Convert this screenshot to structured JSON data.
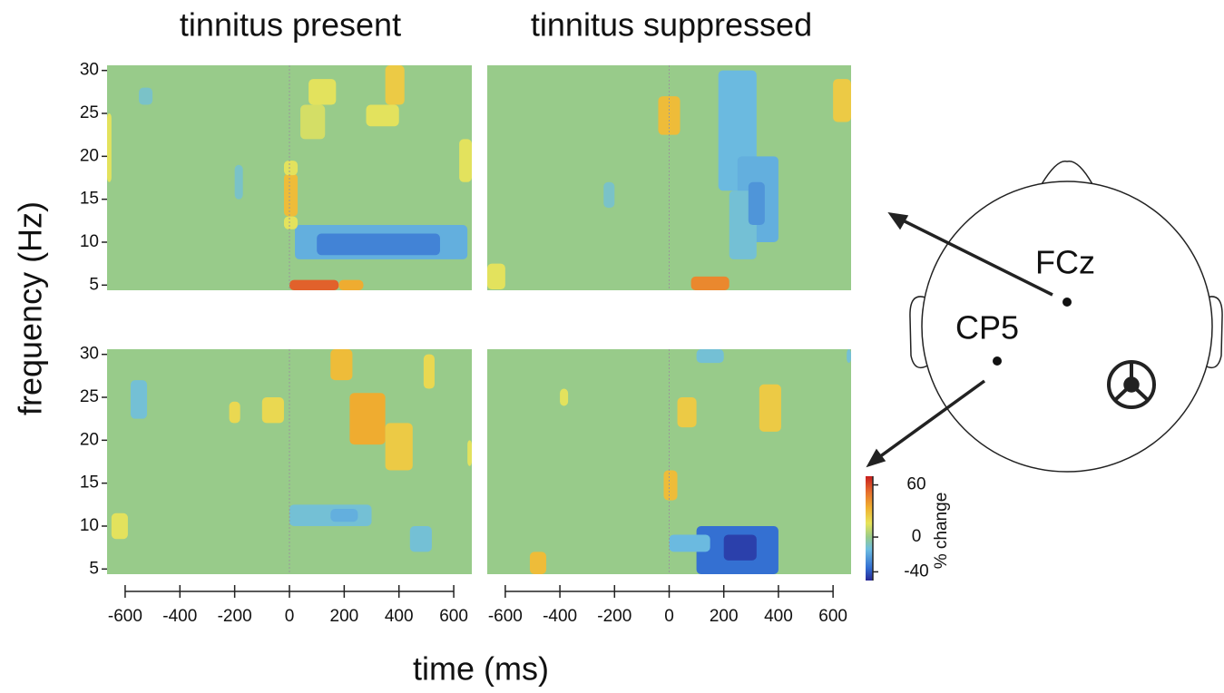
{
  "titles": [
    "tinnitus present",
    "tinnitus suppressed"
  ],
  "x_label": "time (ms)",
  "y_label": "frequency (Hz)",
  "colorbar": {
    "label": "% change",
    "lim": [
      -50,
      70
    ],
    "ticks": [
      60,
      0,
      -40
    ]
  },
  "head": {
    "electrodes": [
      "FCz",
      "CP5"
    ]
  },
  "chart_data": [
    {
      "type": "heatmap",
      "xlim": [
        -666,
        666
      ],
      "ylim": [
        4.4,
        30.6
      ],
      "yticks": [
        5,
        10,
        15,
        20,
        25,
        30
      ],
      "x0": [
        20,
        100,
        0,
        180,
        -20,
        -20,
        -20,
        350,
        280,
        70,
        40,
        -666,
        620,
        -550,
        -200
      ],
      "x1": [
        650,
        550,
        180,
        270,
        30,
        30,
        30,
        420,
        400,
        170,
        130,
        -650,
        666,
        -500,
        -170
      ],
      "y0": [
        8,
        8.5,
        4.4,
        4.4,
        13,
        11.5,
        17.8,
        26,
        23.5,
        26,
        22,
        17,
        17,
        26,
        15
      ],
      "y1": [
        12,
        11,
        5.6,
        5.6,
        18,
        13,
        19.5,
        30.6,
        26,
        29,
        26,
        25,
        22,
        28,
        19
      ],
      "values": [
        -18,
        -30,
        55,
        35,
        30,
        15,
        15,
        25,
        15,
        15,
        12,
        15,
        15,
        -10,
        -10
      ]
    },
    {
      "type": "heatmap",
      "xlim": [
        -666,
        666
      ],
      "ylim": [
        4.4,
        30.6
      ],
      "x0": [
        180,
        250,
        220,
        290,
        -240,
        -40,
        80,
        600,
        -666
      ],
      "x1": [
        320,
        400,
        320,
        350,
        -200,
        40,
        220,
        666,
        -600
      ],
      "y0": [
        16,
        10,
        8,
        12,
        14,
        22.5,
        4.4,
        24,
        4.5
      ],
      "y1": [
        30,
        20,
        16,
        17,
        17,
        27,
        6,
        29,
        7.5
      ],
      "values": [
        -15,
        -18,
        -12,
        -25,
        -10,
        30,
        45,
        25,
        15
      ]
    },
    {
      "type": "heatmap",
      "xlim": [
        -666,
        666
      ],
      "ylim": [
        4.4,
        30.6
      ],
      "yticks": [
        5,
        10,
        15,
        20,
        25,
        30
      ],
      "xticks": [
        -600,
        -400,
        -200,
        0,
        200,
        400,
        600
      ],
      "x0": [
        0,
        150,
        -580,
        440,
        150,
        220,
        350,
        490,
        -100,
        -220,
        -650,
        650
      ],
      "x1": [
        300,
        250,
        -520,
        520,
        230,
        350,
        450,
        530,
        -20,
        -180,
        -590,
        666
      ],
      "y0": [
        10,
        10.5,
        22.5,
        7,
        27,
        19.5,
        16.5,
        26,
        22,
        22,
        8.5,
        17
      ],
      "y1": [
        12.5,
        12,
        27,
        10,
        30.6,
        25.5,
        22,
        30,
        25,
        24.5,
        11.5,
        20
      ],
      "values": [
        -12,
        -18,
        -12,
        -12,
        30,
        35,
        25,
        20,
        20,
        20,
        15,
        15
      ]
    },
    {
      "type": "heatmap",
      "xlim": [
        -666,
        666
      ],
      "ylim": [
        4.4,
        30.6
      ],
      "xticks": [
        -600,
        -400,
        -200,
        0,
        200,
        400,
        600
      ],
      "x0": [
        100,
        0,
        200,
        100,
        650,
        -20,
        30,
        330,
        -510,
        -400
      ],
      "x1": [
        400,
        150,
        320,
        200,
        666,
        30,
        100,
        410,
        -450,
        -370
      ],
      "y0": [
        4.4,
        7,
        6,
        29,
        29,
        13,
        21.5,
        21,
        4.4,
        24
      ],
      "y1": [
        10,
        9,
        9,
        30.6,
        30.6,
        16.5,
        25,
        26.5,
        7,
        26
      ],
      "values": [
        -35,
        -15,
        -45,
        -12,
        -12,
        30,
        25,
        25,
        30,
        15
      ]
    }
  ]
}
